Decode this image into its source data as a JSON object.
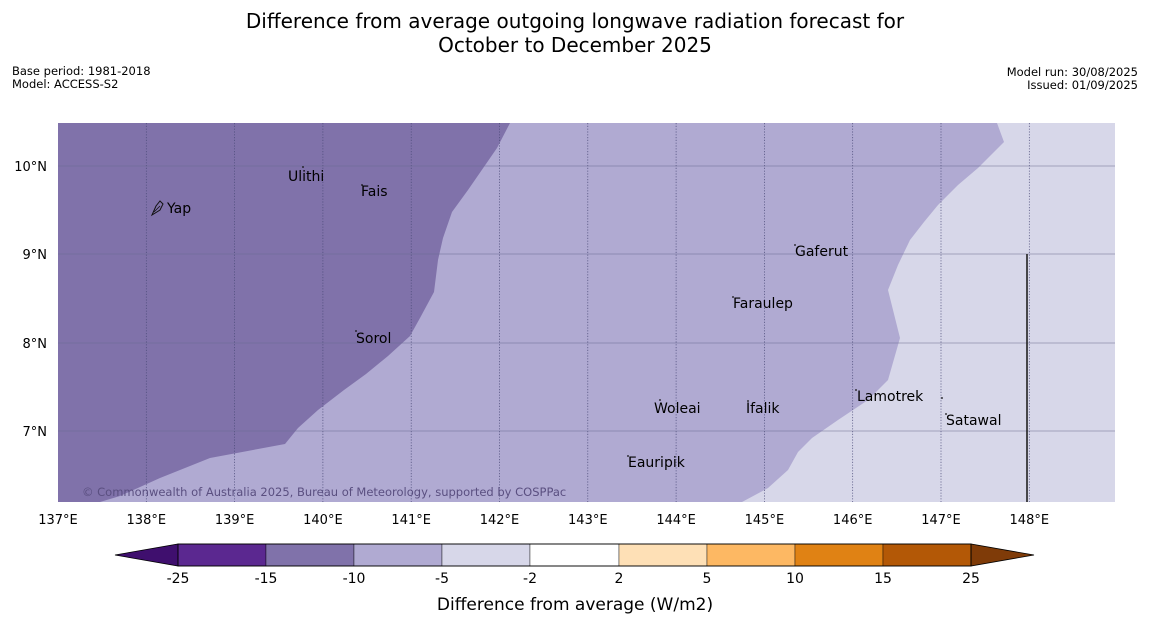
{
  "header": {
    "title_line1": "Difference from average outgoing longwave radiation forecast for",
    "title_line2": "October to December 2025",
    "base_period": "Base period: 1981-2018",
    "model": "Model: ACCESS-S2",
    "model_run": "Model run: 30/08/2025",
    "issued": "Issued: 01/09/2025"
  },
  "map": {
    "lon_ticks": [
      "137°E",
      "138°E",
      "139°E",
      "140°E",
      "141°E",
      "142°E",
      "143°E",
      "144°E",
      "145°E",
      "146°E",
      "147°E",
      "148°E"
    ],
    "lat_ticks": [
      "10°N",
      "9°N",
      "8°N",
      "7°N"
    ],
    "places": [
      "Yap",
      "Ulithi",
      "Fais",
      "Gaferut",
      "Faraulep",
      "Sorol",
      "Lamotrek",
      "Woleai",
      "Ifalik",
      "Satawal",
      "Eauripik"
    ],
    "copyright": "© Commonwealth of Australia 2025, Bureau of Meteorology, supported by COSPPac",
    "zone_colors": {
      "minus15_to_minus10": "#8072aa",
      "minus10_to_minus5": "#b0aad2",
      "minus5_to_minus2": "#d7d7e9"
    }
  },
  "colorbar": {
    "tick_labels": [
      "-25",
      "-15",
      "-10",
      "-5",
      "-2",
      "2",
      "5",
      "10",
      "15",
      "25"
    ],
    "colors": [
      "#3f0f6e",
      "#5b2890",
      "#8072aa",
      "#b0aad2",
      "#d7d7e9",
      "#ffffff",
      "#fee0b6",
      "#fdb863",
      "#e08214",
      "#b35806",
      "#7f3b08"
    ],
    "label": "Difference from average (W/m2)"
  }
}
